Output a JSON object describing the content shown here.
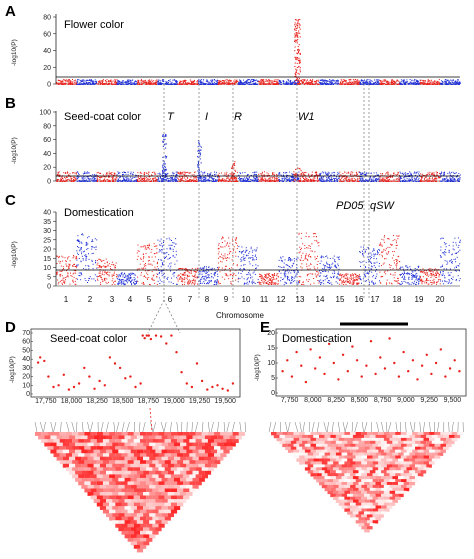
{
  "panels": {
    "A": {
      "letter": "A",
      "title": "Flower color",
      "ylabel": "-log10(P)",
      "yticks": [
        "0",
        "20",
        "40",
        "60",
        "80"
      ]
    },
    "B": {
      "letter": "B",
      "title": "Seed-coat color",
      "ylabel": "-log10(P)",
      "yticks": [
        "0",
        "20",
        "40",
        "60",
        "80",
        "100"
      ]
    },
    "C": {
      "letter": "C",
      "title": "Domestication",
      "ylabel": "-log10(P)",
      "yticks": [
        "0",
        "5",
        "10",
        "15",
        "20",
        "25",
        "30",
        "35",
        "40"
      ]
    },
    "D": {
      "letter": "D",
      "title": "Seed-coat color",
      "ylabel": "-log10(P)",
      "yticks": [
        "0",
        "10",
        "20",
        "30",
        "40",
        "50",
        "60",
        "70"
      ],
      "xticks": [
        "17,750",
        "18,000",
        "18,250",
        "18,500",
        "18,750",
        "19,000",
        "19,250",
        "19,500"
      ]
    },
    "E": {
      "letter": "E",
      "title": "Domestication",
      "ylabel": "-log10(P)",
      "yticks": [
        "0",
        "5",
        "10",
        "15",
        "20"
      ],
      "xticks": [
        "7,750",
        "8,000",
        "8,250",
        "8,500",
        "8,750",
        "9,000",
        "9,250",
        "9,500"
      ]
    }
  },
  "genes": {
    "T": "T",
    "I": "I",
    "R": "R",
    "W1": "W1",
    "PD05": "PD05",
    "qSW": "qSW"
  },
  "xaxis": {
    "label": "Chromosome",
    "chromosomes": [
      "1",
      "2",
      "3",
      "4",
      "5",
      "6",
      "7",
      "8",
      "9",
      "10",
      "11",
      "12",
      "13",
      "14",
      "15",
      "16",
      "17",
      "18",
      "19",
      "20"
    ]
  },
  "colors": {
    "red": "#e8211c",
    "blue": "#1f2fd6",
    "threshold": "#000000"
  },
  "chart_data": [
    {
      "type": "scatter",
      "panel": "A",
      "title": "Flower color",
      "ylabel": "-log10(P)",
      "ylim": [
        0,
        80
      ],
      "x": "chromosomes 1-20",
      "peaks": [
        {
          "chromosome": "13",
          "max_y": 78
        }
      ],
      "baseline_max": 5,
      "threshold_y": 7
    },
    {
      "type": "scatter",
      "panel": "B",
      "title": "Seed-coat color",
      "ylabel": "-log10(P)",
      "ylim": [
        0,
        100
      ],
      "peaks": [
        {
          "chromosome": "6",
          "label": "T",
          "max_y": 70
        },
        {
          "chromosome": "8",
          "label": "I",
          "max_y": 60
        },
        {
          "chromosome": "9",
          "label": "R",
          "max_y": 30
        },
        {
          "chromosome": "13",
          "label": "W1",
          "max_y": 20
        }
      ],
      "baseline_max": 12,
      "threshold_y": 7
    },
    {
      "type": "scatter",
      "panel": "C",
      "title": "Domestication",
      "ylabel": "-log10(P)",
      "ylim": [
        0,
        40
      ],
      "annotations": [
        {
          "chromosome": "16",
          "label": "PD05"
        },
        {
          "chromosome": "17",
          "label": "qSW"
        }
      ],
      "typical_max_y": 30,
      "threshold_y": 7
    },
    {
      "type": "scatter",
      "panel": "D",
      "title": "Seed-coat color",
      "ylabel": "-log10(P)",
      "xlim": [
        17650,
        19650
      ],
      "ylim": [
        0,
        70
      ],
      "x": [
        17700,
        17720,
        17760,
        17800,
        17850,
        17900,
        17950,
        18000,
        18050,
        18100,
        18150,
        18200,
        18250,
        18300,
        18350,
        18400,
        18450,
        18500,
        18550,
        18600,
        18650,
        18700,
        18720,
        18740,
        18760,
        18780,
        18800,
        18850,
        18900,
        18950,
        19000,
        19050,
        19100,
        19150,
        19200,
        19250,
        19300,
        19350,
        19400,
        19450,
        19500,
        19550,
        19600
      ],
      "y": [
        36,
        42,
        38,
        20,
        8,
        10,
        22,
        5,
        8,
        12,
        30,
        20,
        6,
        15,
        10,
        42,
        35,
        30,
        18,
        20,
        8,
        12,
        67,
        64,
        67,
        67,
        63,
        67,
        66,
        58,
        67,
        48,
        25,
        12,
        8,
        35,
        15,
        5,
        8,
        10,
        6,
        4,
        12
      ]
    },
    {
      "type": "scatter",
      "panel": "E",
      "title": "Domestication",
      "ylabel": "-log10(P)",
      "xlim": [
        7650,
        9650
      ],
      "ylim": [
        0,
        22
      ],
      "x": [
        7700,
        7750,
        7800,
        7850,
        7900,
        7950,
        8000,
        8050,
        8100,
        8150,
        8200,
        8250,
        8300,
        8350,
        8400,
        8450,
        8500,
        8550,
        8600,
        8650,
        8700,
        8750,
        8800,
        8850,
        8900,
        8950,
        9000,
        9050,
        9100,
        9150,
        9200,
        9250,
        9300,
        9350,
        9400,
        9450,
        9500,
        9550,
        9600
      ],
      "y": [
        8,
        12,
        6,
        15,
        10,
        4,
        16,
        9,
        13,
        7,
        18,
        11,
        5,
        14,
        8,
        17,
        12,
        6,
        10,
        19,
        7,
        13,
        9,
        20,
        11,
        6,
        15,
        8,
        12,
        5,
        10,
        14,
        7,
        11,
        16,
        6,
        9,
        12,
        8
      ]
    }
  ]
}
